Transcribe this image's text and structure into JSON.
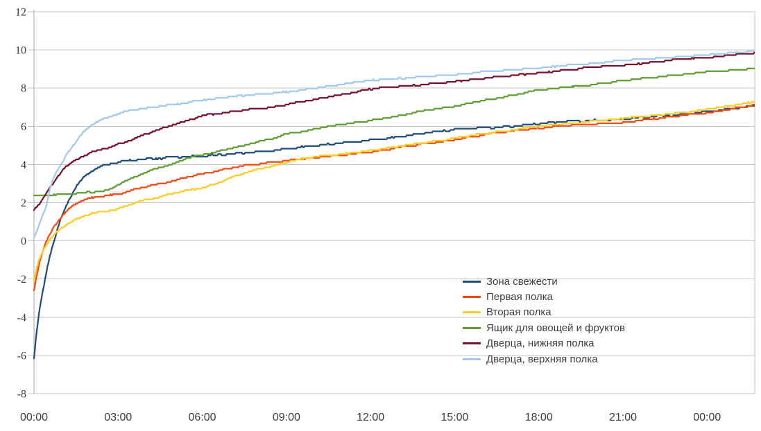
{
  "chart_data": {
    "type": "line",
    "title": "",
    "xlabel": "",
    "ylabel": "",
    "grid": "horizontal-only",
    "legend_position": "inside-right-lower",
    "y_axis": {
      "min": -8,
      "max": 12,
      "tick_step": 2,
      "ticks": [
        12,
        10,
        8,
        6,
        4,
        2,
        0,
        -2,
        -4,
        -6,
        -8
      ]
    },
    "x_axis": {
      "unit": "time (h:mm)",
      "tick_labels": [
        "00:00",
        "03:00",
        "06:00",
        "09:00",
        "12:00",
        "15:00",
        "18:00",
        "21:00",
        "00:00"
      ],
      "tick_hours": [
        0,
        3,
        6,
        9,
        12,
        15,
        18,
        21,
        24
      ],
      "end_hour": 25.7
    },
    "colors": {
      "grid": "#c6c6c6",
      "axis": "#a6a6a6",
      "tick_text": "#3d3d3d",
      "legend_text": "#3f3f3f"
    },
    "series": [
      {
        "name": "Зона свежести",
        "color": "#1F4E79",
        "noise": 0.045,
        "points": [
          [
            0,
            -6.2
          ],
          [
            0.08,
            -5.0
          ],
          [
            0.17,
            -3.9
          ],
          [
            0.27,
            -3.0
          ],
          [
            0.38,
            -2.1
          ],
          [
            0.5,
            -1.2
          ],
          [
            0.63,
            -0.45
          ],
          [
            0.8,
            0.4
          ],
          [
            1.0,
            1.3
          ],
          [
            1.2,
            2.0
          ],
          [
            1.45,
            2.7
          ],
          [
            1.7,
            3.2
          ],
          [
            2.0,
            3.6
          ],
          [
            2.3,
            3.85
          ],
          [
            2.6,
            4.0
          ],
          [
            3.0,
            4.12
          ],
          [
            3.6,
            4.25
          ],
          [
            4.2,
            4.3
          ],
          [
            5.0,
            4.38
          ],
          [
            5.7,
            4.42
          ],
          [
            6.5,
            4.5
          ],
          [
            7.5,
            4.6
          ],
          [
            8.5,
            4.72
          ],
          [
            9.5,
            4.9
          ],
          [
            10.5,
            5.05
          ],
          [
            11.5,
            5.2
          ],
          [
            12.5,
            5.35
          ],
          [
            13.5,
            5.55
          ],
          [
            14.5,
            5.75
          ],
          [
            15.3,
            5.88
          ],
          [
            16.2,
            5.93
          ],
          [
            17.2,
            6.02
          ],
          [
            18,
            6.15
          ],
          [
            19,
            6.25
          ],
          [
            20,
            6.3
          ],
          [
            21,
            6.38
          ],
          [
            22,
            6.5
          ],
          [
            23,
            6.6
          ],
          [
            24,
            6.78
          ],
          [
            25,
            6.95
          ],
          [
            25.7,
            7.08
          ]
        ]
      },
      {
        "name": "Первая полка",
        "color": "#F64A15",
        "noise": 0.03,
        "points": [
          [
            0,
            -2.6
          ],
          [
            0.1,
            -1.8
          ],
          [
            0.2,
            -1.1
          ],
          [
            0.35,
            -0.4
          ],
          [
            0.5,
            0.15
          ],
          [
            0.7,
            0.7
          ],
          [
            0.95,
            1.2
          ],
          [
            1.2,
            1.6
          ],
          [
            1.5,
            1.95
          ],
          [
            1.8,
            2.15
          ],
          [
            2.2,
            2.3
          ],
          [
            2.6,
            2.38
          ],
          [
            3.0,
            2.45
          ],
          [
            3.5,
            2.65
          ],
          [
            4.0,
            2.85
          ],
          [
            4.5,
            3.0
          ],
          [
            5.0,
            3.15
          ],
          [
            5.5,
            3.35
          ],
          [
            6.0,
            3.5
          ],
          [
            6.5,
            3.65
          ],
          [
            7.0,
            3.8
          ],
          [
            7.5,
            3.95
          ],
          [
            8.0,
            4.02
          ],
          [
            8.7,
            4.15
          ],
          [
            9.3,
            4.25
          ],
          [
            10,
            4.35
          ],
          [
            11,
            4.5
          ],
          [
            12,
            4.65
          ],
          [
            13,
            4.9
          ],
          [
            14,
            5.1
          ],
          [
            15,
            5.3
          ],
          [
            16,
            5.55
          ],
          [
            17,
            5.75
          ],
          [
            18,
            5.9
          ],
          [
            19,
            6.05
          ],
          [
            20,
            6.12
          ],
          [
            21,
            6.2
          ],
          [
            22,
            6.38
          ],
          [
            23,
            6.55
          ],
          [
            24,
            6.7
          ],
          [
            25,
            6.95
          ],
          [
            25.7,
            7.12
          ]
        ]
      },
      {
        "name": "Вторая полка",
        "color": "#FBCD25",
        "noise": 0.03,
        "points": [
          [
            0,
            -2.1
          ],
          [
            0.12,
            -1.3
          ],
          [
            0.25,
            -0.75
          ],
          [
            0.4,
            -0.3
          ],
          [
            0.6,
            0.1
          ],
          [
            0.85,
            0.5
          ],
          [
            1.1,
            0.8
          ],
          [
            1.4,
            1.05
          ],
          [
            1.7,
            1.25
          ],
          [
            2.1,
            1.45
          ],
          [
            2.5,
            1.55
          ],
          [
            3.0,
            1.68
          ],
          [
            3.5,
            1.95
          ],
          [
            4.0,
            2.15
          ],
          [
            4.5,
            2.3
          ],
          [
            5.0,
            2.5
          ],
          [
            5.5,
            2.65
          ],
          [
            6.0,
            2.78
          ],
          [
            6.5,
            3.0
          ],
          [
            7.0,
            3.3
          ],
          [
            7.5,
            3.55
          ],
          [
            8.0,
            3.75
          ],
          [
            8.6,
            3.95
          ],
          [
            9.3,
            4.22
          ],
          [
            10,
            4.4
          ],
          [
            11,
            4.55
          ],
          [
            12,
            4.72
          ],
          [
            13,
            4.95
          ],
          [
            14,
            5.15
          ],
          [
            15,
            5.38
          ],
          [
            16,
            5.6
          ],
          [
            17,
            5.8
          ],
          [
            18,
            6.0
          ],
          [
            19,
            6.15
          ],
          [
            20,
            6.28
          ],
          [
            21,
            6.42
          ],
          [
            22,
            6.55
          ],
          [
            23,
            6.7
          ],
          [
            24,
            6.9
          ],
          [
            25,
            7.12
          ],
          [
            25.7,
            7.28
          ]
        ]
      },
      {
        "name": "Ящик для овощей и фруктов",
        "color": "#5F9E32",
        "noise": 0.025,
        "points": [
          [
            0,
            2.35
          ],
          [
            0.5,
            2.4
          ],
          [
            1.0,
            2.45
          ],
          [
            1.5,
            2.5
          ],
          [
            2.0,
            2.55
          ],
          [
            2.5,
            2.62
          ],
          [
            2.8,
            2.75
          ],
          [
            3.0,
            2.95
          ],
          [
            3.3,
            3.15
          ],
          [
            3.7,
            3.4
          ],
          [
            4.0,
            3.6
          ],
          [
            4.5,
            3.85
          ],
          [
            5.0,
            4.05
          ],
          [
            5.5,
            4.35
          ],
          [
            6.0,
            4.5
          ],
          [
            6.5,
            4.65
          ],
          [
            7.0,
            4.85
          ],
          [
            7.5,
            5.0
          ],
          [
            8.0,
            5.2
          ],
          [
            8.5,
            5.35
          ],
          [
            9.0,
            5.6
          ],
          [
            9.5,
            5.7
          ],
          [
            10,
            5.85
          ],
          [
            10.5,
            6.0
          ],
          [
            11,
            6.1
          ],
          [
            12,
            6.3
          ],
          [
            13,
            6.55
          ],
          [
            14,
            6.85
          ],
          [
            15,
            7.05
          ],
          [
            16,
            7.35
          ],
          [
            17,
            7.6
          ],
          [
            18,
            7.9
          ],
          [
            19,
            8.05
          ],
          [
            19.8,
            8.15
          ],
          [
            21,
            8.4
          ],
          [
            22,
            8.55
          ],
          [
            23,
            8.7
          ],
          [
            24,
            8.85
          ],
          [
            25,
            8.95
          ],
          [
            25.7,
            9.05
          ]
        ]
      },
      {
        "name": "Дверца, нижняя полка",
        "color": "#76122B",
        "noise": 0.03,
        "points": [
          [
            0,
            1.65
          ],
          [
            0.2,
            1.95
          ],
          [
            0.4,
            2.4
          ],
          [
            0.6,
            2.85
          ],
          [
            0.8,
            3.25
          ],
          [
            1.0,
            3.7
          ],
          [
            1.2,
            3.95
          ],
          [
            1.45,
            4.2
          ],
          [
            1.7,
            4.4
          ],
          [
            2.0,
            4.6
          ],
          [
            2.3,
            4.75
          ],
          [
            2.7,
            4.9
          ],
          [
            3.0,
            5.05
          ],
          [
            3.5,
            5.3
          ],
          [
            4.0,
            5.6
          ],
          [
            4.5,
            5.85
          ],
          [
            5.0,
            6.1
          ],
          [
            5.5,
            6.3
          ],
          [
            6.0,
            6.55
          ],
          [
            6.5,
            6.65
          ],
          [
            7.0,
            6.75
          ],
          [
            7.5,
            6.85
          ],
          [
            8.0,
            6.95
          ],
          [
            8.5,
            7.0
          ],
          [
            9.0,
            7.15
          ],
          [
            10,
            7.4
          ],
          [
            10.5,
            7.55
          ],
          [
            11,
            7.65
          ],
          [
            12,
            7.95
          ],
          [
            13,
            8.1
          ],
          [
            14,
            8.2
          ],
          [
            15,
            8.35
          ],
          [
            16,
            8.5
          ],
          [
            17,
            8.65
          ],
          [
            18,
            8.8
          ],
          [
            19,
            8.95
          ],
          [
            20,
            9.1
          ],
          [
            21,
            9.2
          ],
          [
            22,
            9.35
          ],
          [
            23,
            9.5
          ],
          [
            24,
            9.6
          ],
          [
            25,
            9.75
          ],
          [
            25.7,
            9.85
          ]
        ]
      },
      {
        "name": "Дверца, верхняя полка",
        "color": "#A0C9EC",
        "noise": 0.025,
        "points": [
          [
            0,
            0.15
          ],
          [
            0.15,
            0.7
          ],
          [
            0.3,
            1.3
          ],
          [
            0.45,
            1.9
          ],
          [
            0.6,
            2.9
          ],
          [
            0.8,
            3.6
          ],
          [
            1.0,
            4.1
          ],
          [
            1.2,
            4.6
          ],
          [
            1.4,
            5.0
          ],
          [
            1.6,
            5.4
          ],
          [
            1.8,
            5.75
          ],
          [
            2.0,
            6.0
          ],
          [
            2.2,
            6.2
          ],
          [
            2.5,
            6.4
          ],
          [
            2.8,
            6.55
          ],
          [
            3.1,
            6.7
          ],
          [
            3.5,
            6.85
          ],
          [
            4.0,
            6.95
          ],
          [
            4.5,
            7.05
          ],
          [
            5.0,
            7.15
          ],
          [
            5.5,
            7.25
          ],
          [
            6.0,
            7.38
          ],
          [
            6.5,
            7.45
          ],
          [
            7.0,
            7.55
          ],
          [
            7.5,
            7.6
          ],
          [
            8.0,
            7.68
          ],
          [
            9.0,
            7.8
          ],
          [
            10,
            8.0
          ],
          [
            11,
            8.2
          ],
          [
            12,
            8.4
          ],
          [
            13,
            8.5
          ],
          [
            14,
            8.6
          ],
          [
            15,
            8.7
          ],
          [
            16,
            8.85
          ],
          [
            17,
            8.95
          ],
          [
            18,
            9.05
          ],
          [
            19,
            9.2
          ],
          [
            20,
            9.3
          ],
          [
            21,
            9.45
          ],
          [
            22,
            9.55
          ],
          [
            23,
            9.65
          ],
          [
            24,
            9.75
          ],
          [
            25,
            9.85
          ],
          [
            25.7,
            9.92
          ]
        ]
      }
    ]
  }
}
